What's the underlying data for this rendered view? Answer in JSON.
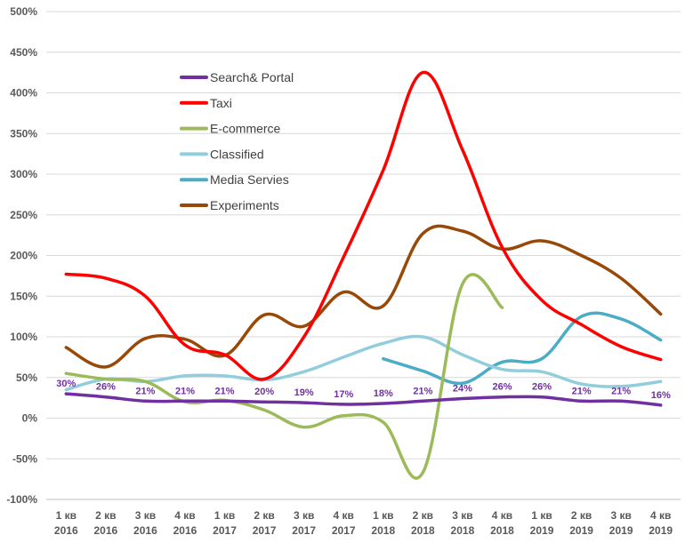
{
  "chart_data": {
    "type": "line",
    "categories": [
      [
        "1 кв",
        "2016"
      ],
      [
        "2 кв",
        "2016"
      ],
      [
        "3 кв",
        "2016"
      ],
      [
        "4 кв",
        "2016"
      ],
      [
        "1 кв",
        "2017"
      ],
      [
        "2 кв",
        "2017"
      ],
      [
        "3 кв",
        "2017"
      ],
      [
        "4 кв",
        "2017"
      ],
      [
        "1 кв",
        "2018"
      ],
      [
        "2 кв",
        "2018"
      ],
      [
        "3 кв",
        "2018"
      ],
      [
        "4 кв",
        "2018"
      ],
      [
        "1 кв",
        "2019"
      ],
      [
        "2 кв",
        "2019"
      ],
      [
        "3 кв",
        "2019"
      ],
      [
        "4 кв",
        "2019"
      ]
    ],
    "yticks": [
      "500%",
      "450%",
      "400%",
      "350%",
      "300%",
      "250%",
      "200%",
      "150%",
      "100%",
      "50%",
      "0%",
      "-50%",
      "-100%"
    ],
    "ylim": [
      -100,
      500
    ],
    "ystep": 50,
    "grid": true,
    "legend_position": "top-left",
    "series": [
      {
        "name": "Search& Portal",
        "color": "#7030A0",
        "values": [
          30,
          26,
          21,
          21,
          21,
          20,
          19,
          17,
          18,
          21,
          24,
          26,
          26,
          21,
          21,
          16
        ],
        "labels": [
          "30%",
          "26%",
          "21%",
          "21%",
          "21%",
          "20%",
          "19%",
          "17%",
          "18%",
          "21%",
          "24%",
          "26%",
          "26%",
          "21%",
          "21%",
          "16%"
        ]
      },
      {
        "name": "Taxi",
        "color": "#FF0000",
        "values": [
          177,
          172,
          150,
          90,
          78,
          48,
          100,
          198,
          305,
          425,
          330,
          210,
          145,
          115,
          88,
          72
        ]
      },
      {
        "name": "E-commerce",
        "color": "#9BBB59",
        "values": [
          55,
          48,
          45,
          20,
          22,
          10,
          -11,
          3,
          -5,
          -67,
          165,
          136,
          null,
          null,
          null,
          null
        ]
      },
      {
        "name": "Classified",
        "color": "#92CDDC",
        "values": [
          35,
          48,
          45,
          52,
          52,
          47,
          57,
          75,
          92,
          100,
          78,
          60,
          57,
          42,
          39,
          45
        ]
      },
      {
        "name": "Media Servies",
        "color": "#4BACC6",
        "values": [
          null,
          null,
          null,
          null,
          null,
          null,
          null,
          null,
          73,
          58,
          43,
          69,
          73,
          125,
          122,
          96
        ]
      },
      {
        "name": "Experiments",
        "color": "#984807",
        "values": [
          87,
          63,
          98,
          97,
          77,
          127,
          113,
          155,
          138,
          227,
          230,
          208,
          218,
          200,
          172,
          128
        ]
      }
    ]
  }
}
